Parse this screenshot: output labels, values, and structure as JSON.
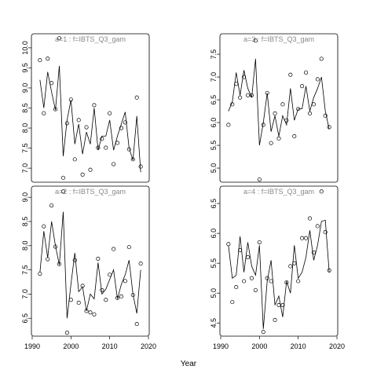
{
  "chart_data": [
    {
      "type": "line",
      "title": "a=1  :  f=IBTS_Q3_gam",
      "x": [
        1992,
        1993,
        1994,
        1995,
        1996,
        1997,
        1998,
        1999,
        2000,
        2001,
        2002,
        2003,
        2004,
        2005,
        2006,
        2007,
        2008,
        2009,
        2010,
        2011,
        2012,
        2013,
        2014,
        2015,
        2016,
        2017,
        2018
      ],
      "series": [
        {
          "mode": "markers",
          "color": "#000000",
          "values": [
            9.69,
            8.37,
            9.73,
            9.12,
            8.47,
            10.24,
            6.76,
            8.12,
            8.71,
            7.22,
            8.2,
            6.84,
            8.02,
            6.96,
            8.57,
            7.51,
            7.73,
            7.51,
            8.37,
            7.1,
            7.63,
            8.0,
            8.14,
            7.47,
            7.22,
            8.76,
            7.04
          ]
        },
        {
          "mode": "lines",
          "color": "#000000",
          "values": [
            9.2,
            8.5,
            9.4,
            8.9,
            8.45,
            9.55,
            7.3,
            8.2,
            8.7,
            7.6,
            8.1,
            7.35,
            7.9,
            7.6,
            8.5,
            7.45,
            7.8,
            7.8,
            8.2,
            7.45,
            7.8,
            8.1,
            8.4,
            7.5,
            7.2,
            8.3,
            6.9
          ]
        }
      ],
      "xlim": [
        1989.8,
        2020.2
      ],
      "ylim": [
        6.65,
        10.35
      ],
      "yticks": [
        {
          "value": 7,
          "label": "7.0"
        },
        {
          "value": 7.5,
          "label": "7.5"
        },
        {
          "value": 8,
          "label": "8.0"
        },
        {
          "value": 8.5,
          "label": "8.5"
        },
        {
          "value": 9,
          "label": "9.0"
        },
        {
          "value": 9.5,
          "label": "9.5"
        },
        {
          "value": 10,
          "label": "10.0"
        }
      ]
    },
    {
      "type": "line",
      "title": "a=3  :  f=IBTS_Q3_gam",
      "x": [
        1992,
        1993,
        1994,
        1995,
        1996,
        1997,
        1998,
        1999,
        2000,
        2001,
        2002,
        2003,
        2004,
        2005,
        2006,
        2007,
        2008,
        2009,
        2010,
        2011,
        2012,
        2013,
        2014,
        2015,
        2016,
        2017,
        2018
      ],
      "series": [
        {
          "mode": "markers",
          "color": "#000000",
          "values": [
            5.95,
            6.4,
            6.85,
            6.55,
            7.0,
            6.6,
            6.6,
            7.8,
            4.75,
            5.95,
            6.65,
            5.55,
            6.2,
            5.65,
            6.4,
            6.05,
            7.05,
            5.7,
            6.3,
            6.8,
            7.1,
            6.2,
            6.4,
            6.95,
            7.4,
            6.15,
            5.9
          ]
        },
        {
          "mode": "lines",
          "color": "#000000",
          "values": [
            6.25,
            6.45,
            7.1,
            6.6,
            7.15,
            6.75,
            6.55,
            7.4,
            5.5,
            6.0,
            6.65,
            5.8,
            6.15,
            5.7,
            6.15,
            5.95,
            6.75,
            6.05,
            6.3,
            6.3,
            6.8,
            6.25,
            6.55,
            6.75,
            7.0,
            6.25,
            5.85
          ]
        }
      ],
      "xlim": [
        1989.8,
        2020.2
      ],
      "ylim": [
        4.69,
        7.95
      ],
      "yticks": [
        {
          "value": 5,
          "label": "5.0"
        },
        {
          "value": 5.5,
          "label": "5.5"
        },
        {
          "value": 6,
          "label": "6.0"
        },
        {
          "value": 6.5,
          "label": "6.5"
        },
        {
          "value": 7,
          "label": "7.0"
        },
        {
          "value": 7.5,
          "label": "7.5"
        }
      ]
    },
    {
      "type": "line",
      "title": "a=2  :  f=IBTS_Q3_gam",
      "x": [
        1992,
        1993,
        1994,
        1995,
        1996,
        1997,
        1998,
        1999,
        2000,
        2001,
        2002,
        2003,
        2004,
        2005,
        2006,
        2007,
        2008,
        2009,
        2010,
        2011,
        2012,
        2013,
        2014,
        2015,
        2016,
        2017,
        2018
      ],
      "series": [
        {
          "mode": "markers",
          "color": "#000000",
          "values": [
            7.42,
            8.4,
            7.72,
            8.83,
            7.98,
            7.62,
            9.12,
            6.2,
            6.88,
            7.7,
            6.82,
            7.17,
            6.65,
            6.62,
            6.58,
            7.73,
            7.08,
            6.88,
            7.4,
            7.93,
            6.92,
            6.95,
            7.27,
            7.97,
            6.98,
            6.38,
            7.63
          ]
        },
        {
          "mode": "lines",
          "color": "#000000",
          "values": [
            7.45,
            8.3,
            7.75,
            8.5,
            8.0,
            7.6,
            8.7,
            6.5,
            7.2,
            7.85,
            7.05,
            7.15,
            6.65,
            7.0,
            6.9,
            7.65,
            7.0,
            7.1,
            7.3,
            7.5,
            6.9,
            7.2,
            7.4,
            7.7,
            7.0,
            6.6,
            7.5
          ]
        }
      ],
      "xlim": [
        1989.8,
        2020.2
      ],
      "ylim": [
        6.13,
        9.23
      ],
      "xticks": [
        1990,
        2000,
        2010,
        2020
      ],
      "yticks": [
        {
          "value": 6.5,
          "label": "6.5"
        },
        {
          "value": 7,
          "label": "7.0"
        },
        {
          "value": 7.5,
          "label": "7.5"
        },
        {
          "value": 8,
          "label": "8.0"
        },
        {
          "value": 8.5,
          "label": "8.5"
        },
        {
          "value": 9,
          "label": "9.0"
        }
      ]
    },
    {
      "type": "line",
      "title": "a=4  :  f=IBTS_Q3_gam",
      "x": [
        1992,
        1993,
        1994,
        1995,
        1996,
        1997,
        1998,
        1999,
        2000,
        2001,
        2002,
        2003,
        2004,
        2005,
        2006,
        2007,
        2008,
        2009,
        2010,
        2011,
        2012,
        2013,
        2014,
        2015,
        2016,
        2017,
        2018
      ],
      "series": [
        {
          "mode": "markers",
          "color": "#000000",
          "values": [
            5.82,
            4.85,
            5.1,
            5.72,
            5.2,
            5.6,
            5.25,
            5.05,
            5.85,
            4.35,
            5.25,
            5.2,
            4.55,
            4.8,
            4.8,
            5.18,
            5.45,
            5.5,
            5.2,
            5.92,
            5.92,
            6.25,
            5.68,
            6.12,
            6.7,
            6.02,
            5.38
          ]
        },
        {
          "mode": "lines",
          "color": "#000000",
          "values": [
            5.8,
            5.25,
            5.3,
            5.95,
            5.35,
            5.85,
            5.45,
            5.3,
            5.8,
            4.4,
            5.2,
            5.55,
            4.8,
            4.95,
            4.6,
            5.2,
            5.0,
            5.8,
            5.25,
            5.35,
            5.6,
            6.05,
            5.55,
            5.8,
            6.2,
            6.22,
            5.35
          ]
        }
      ],
      "xlim": [
        1989.8,
        2020.2
      ],
      "ylim": [
        4.28,
        6.79
      ],
      "xticks": [
        1990,
        2000,
        2010,
        2020
      ],
      "yticks": [
        {
          "value": 4.5,
          "label": "4.5"
        },
        {
          "value": 5,
          "label": "5.0"
        },
        {
          "value": 5.5,
          "label": "5.5"
        },
        {
          "value": 6,
          "label": "6.0"
        },
        {
          "value": 6.5,
          "label": "6.5"
        }
      ]
    }
  ],
  "xlabel": "Year"
}
